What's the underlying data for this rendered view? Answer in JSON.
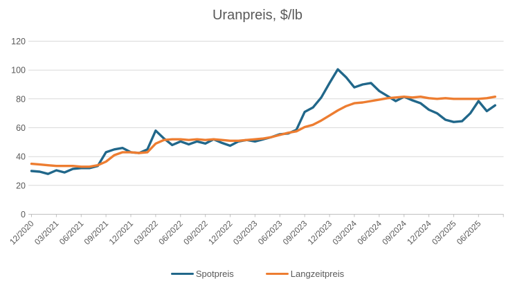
{
  "chart_data": {
    "type": "line",
    "title": "Uranpreis, $/lb",
    "xlabel": "",
    "ylabel": "",
    "ylim": [
      0,
      120
    ],
    "y_ticks": [
      0,
      20,
      40,
      60,
      80,
      100,
      120
    ],
    "grid": "horizontal",
    "legend_position": "bottom",
    "x_tick_labels": [
      "12/2020",
      "03/2021",
      "06/2021",
      "09/2021",
      "12/2021",
      "03/2022",
      "06/2022",
      "09/2022",
      "12/2022",
      "03/2023",
      "06/2023",
      "09/2023",
      "12/2023",
      "03/2024",
      "06/2024",
      "09/2024",
      "12/2024",
      "03/2025",
      "06/2025"
    ],
    "x_monthly": [
      "12/2020",
      "01/2021",
      "02/2021",
      "03/2021",
      "04/2021",
      "05/2021",
      "06/2021",
      "07/2021",
      "08/2021",
      "09/2021",
      "10/2021",
      "11/2021",
      "12/2021",
      "01/2022",
      "02/2022",
      "03/2022",
      "04/2022",
      "05/2022",
      "06/2022",
      "07/2022",
      "08/2022",
      "09/2022",
      "10/2022",
      "11/2022",
      "12/2022",
      "01/2023",
      "02/2023",
      "03/2023",
      "04/2023",
      "05/2023",
      "06/2023",
      "07/2023",
      "08/2023",
      "09/2023",
      "10/2023",
      "11/2023",
      "12/2023",
      "01/2024",
      "02/2024",
      "03/2024",
      "04/2024",
      "05/2024",
      "06/2024",
      "07/2024",
      "08/2024",
      "09/2024",
      "10/2024",
      "11/2024",
      "12/2024",
      "01/2025",
      "02/2025",
      "03/2025",
      "04/2025",
      "05/2025",
      "06/2025",
      "07/2025",
      "08/2025"
    ],
    "series": [
      {
        "name": "Spotpreis",
        "color": "#21678A",
        "values": [
          30,
          29.5,
          28,
          30.5,
          29,
          31.5,
          32,
          32,
          33.5,
          43,
          45,
          46,
          43,
          42.5,
          45,
          58,
          52.5,
          48,
          50.5,
          48.5,
          50.5,
          49,
          52,
          49.5,
          47.5,
          50.5,
          51.5,
          50.5,
          52,
          53.5,
          55.5,
          56,
          58.5,
          71,
          74,
          81,
          91,
          100.5,
          95,
          88,
          90,
          91,
          85.5,
          82,
          78.5,
          81.5,
          79,
          77,
          72.5,
          70,
          65.5,
          64,
          64.5,
          70,
          78.5,
          71.5,
          75.5
        ]
      },
      {
        "name": "Langzeitpreis",
        "color": "#ED7D31",
        "values": [
          35,
          34.5,
          34,
          33.5,
          33.5,
          33.5,
          33,
          33,
          34,
          36.5,
          41,
          43,
          43,
          42.5,
          43,
          49,
          51.5,
          52,
          52,
          51.5,
          52,
          51.5,
          52,
          51.5,
          51,
          51,
          51.5,
          52,
          52.5,
          53.5,
          55,
          56.5,
          57.5,
          60.5,
          62,
          65,
          68.5,
          72,
          75,
          77,
          77.5,
          78.5,
          79.5,
          80.5,
          81,
          81.5,
          81,
          81.5,
          80.5,
          80,
          80.5,
          80,
          80,
          80,
          80,
          80.5,
          81.5
        ]
      }
    ]
  },
  "colors": {
    "background": "#FFFFFF",
    "text": "#595959",
    "gridline": "#D9D9D9",
    "axis": "#BFBFBF"
  }
}
